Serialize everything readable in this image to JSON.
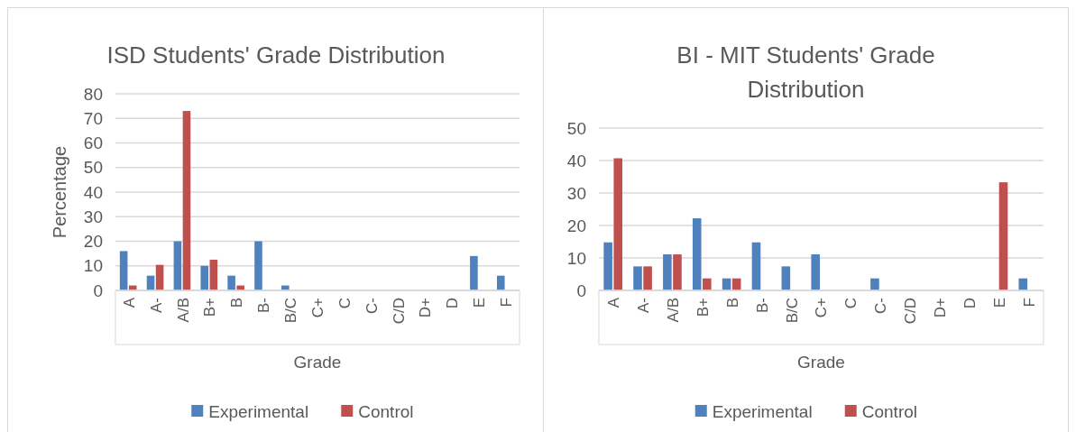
{
  "chart_data": [
    {
      "type": "bar",
      "title": "ISD Students' Grade Distribution",
      "xlabel": "Grade",
      "ylabel": "Percentage",
      "categories": [
        "A",
        "A-",
        "A/B",
        "B+",
        "B",
        "B-",
        "B/C",
        "C+",
        "C",
        "C-",
        "C/D",
        "D+",
        "D",
        "E",
        "F"
      ],
      "series": [
        {
          "name": "Experimental",
          "color": "#4f81bd",
          "values": [
            16,
            6,
            20,
            10,
            6,
            20,
            2,
            0,
            0,
            0,
            0,
            0,
            0,
            14,
            6
          ]
        },
        {
          "name": "Control",
          "color": "#c0504d",
          "values": [
            2,
            10.4,
            73,
            12.5,
            2,
            0,
            0,
            0,
            0,
            0,
            0,
            0,
            0,
            0,
            0
          ]
        }
      ],
      "ylim": [
        0,
        80
      ],
      "yticks": [
        0,
        10,
        20,
        30,
        40,
        50,
        60,
        70,
        80
      ],
      "grid": "y",
      "legend": "bottom"
    },
    {
      "type": "bar",
      "title": "BI - MIT Students' Grade Distribution",
      "xlabel": "Grade",
      "categories": [
        "A",
        "A-",
        "A/B",
        "B+",
        "B",
        "B-",
        "B/C",
        "C+",
        "C",
        "C-",
        "C/D",
        "D+",
        "D",
        "E",
        "F"
      ],
      "series": [
        {
          "name": "Experimental",
          "color": "#4f81bd",
          "values": [
            14.8,
            7.4,
            11.1,
            22.2,
            3.7,
            14.8,
            7.4,
            11.1,
            0,
            3.7,
            0,
            0,
            0,
            0,
            3.7
          ]
        },
        {
          "name": "Control",
          "color": "#c0504d",
          "values": [
            40.7,
            7.4,
            11.1,
            3.7,
            3.7,
            0,
            0,
            0,
            0,
            0,
            0,
            0,
            0,
            33.3,
            0
          ]
        }
      ],
      "ylim": [
        0,
        50
      ],
      "yticks": [
        0,
        10,
        20,
        30,
        40,
        50
      ],
      "grid": "y",
      "legend": "bottom"
    }
  ]
}
